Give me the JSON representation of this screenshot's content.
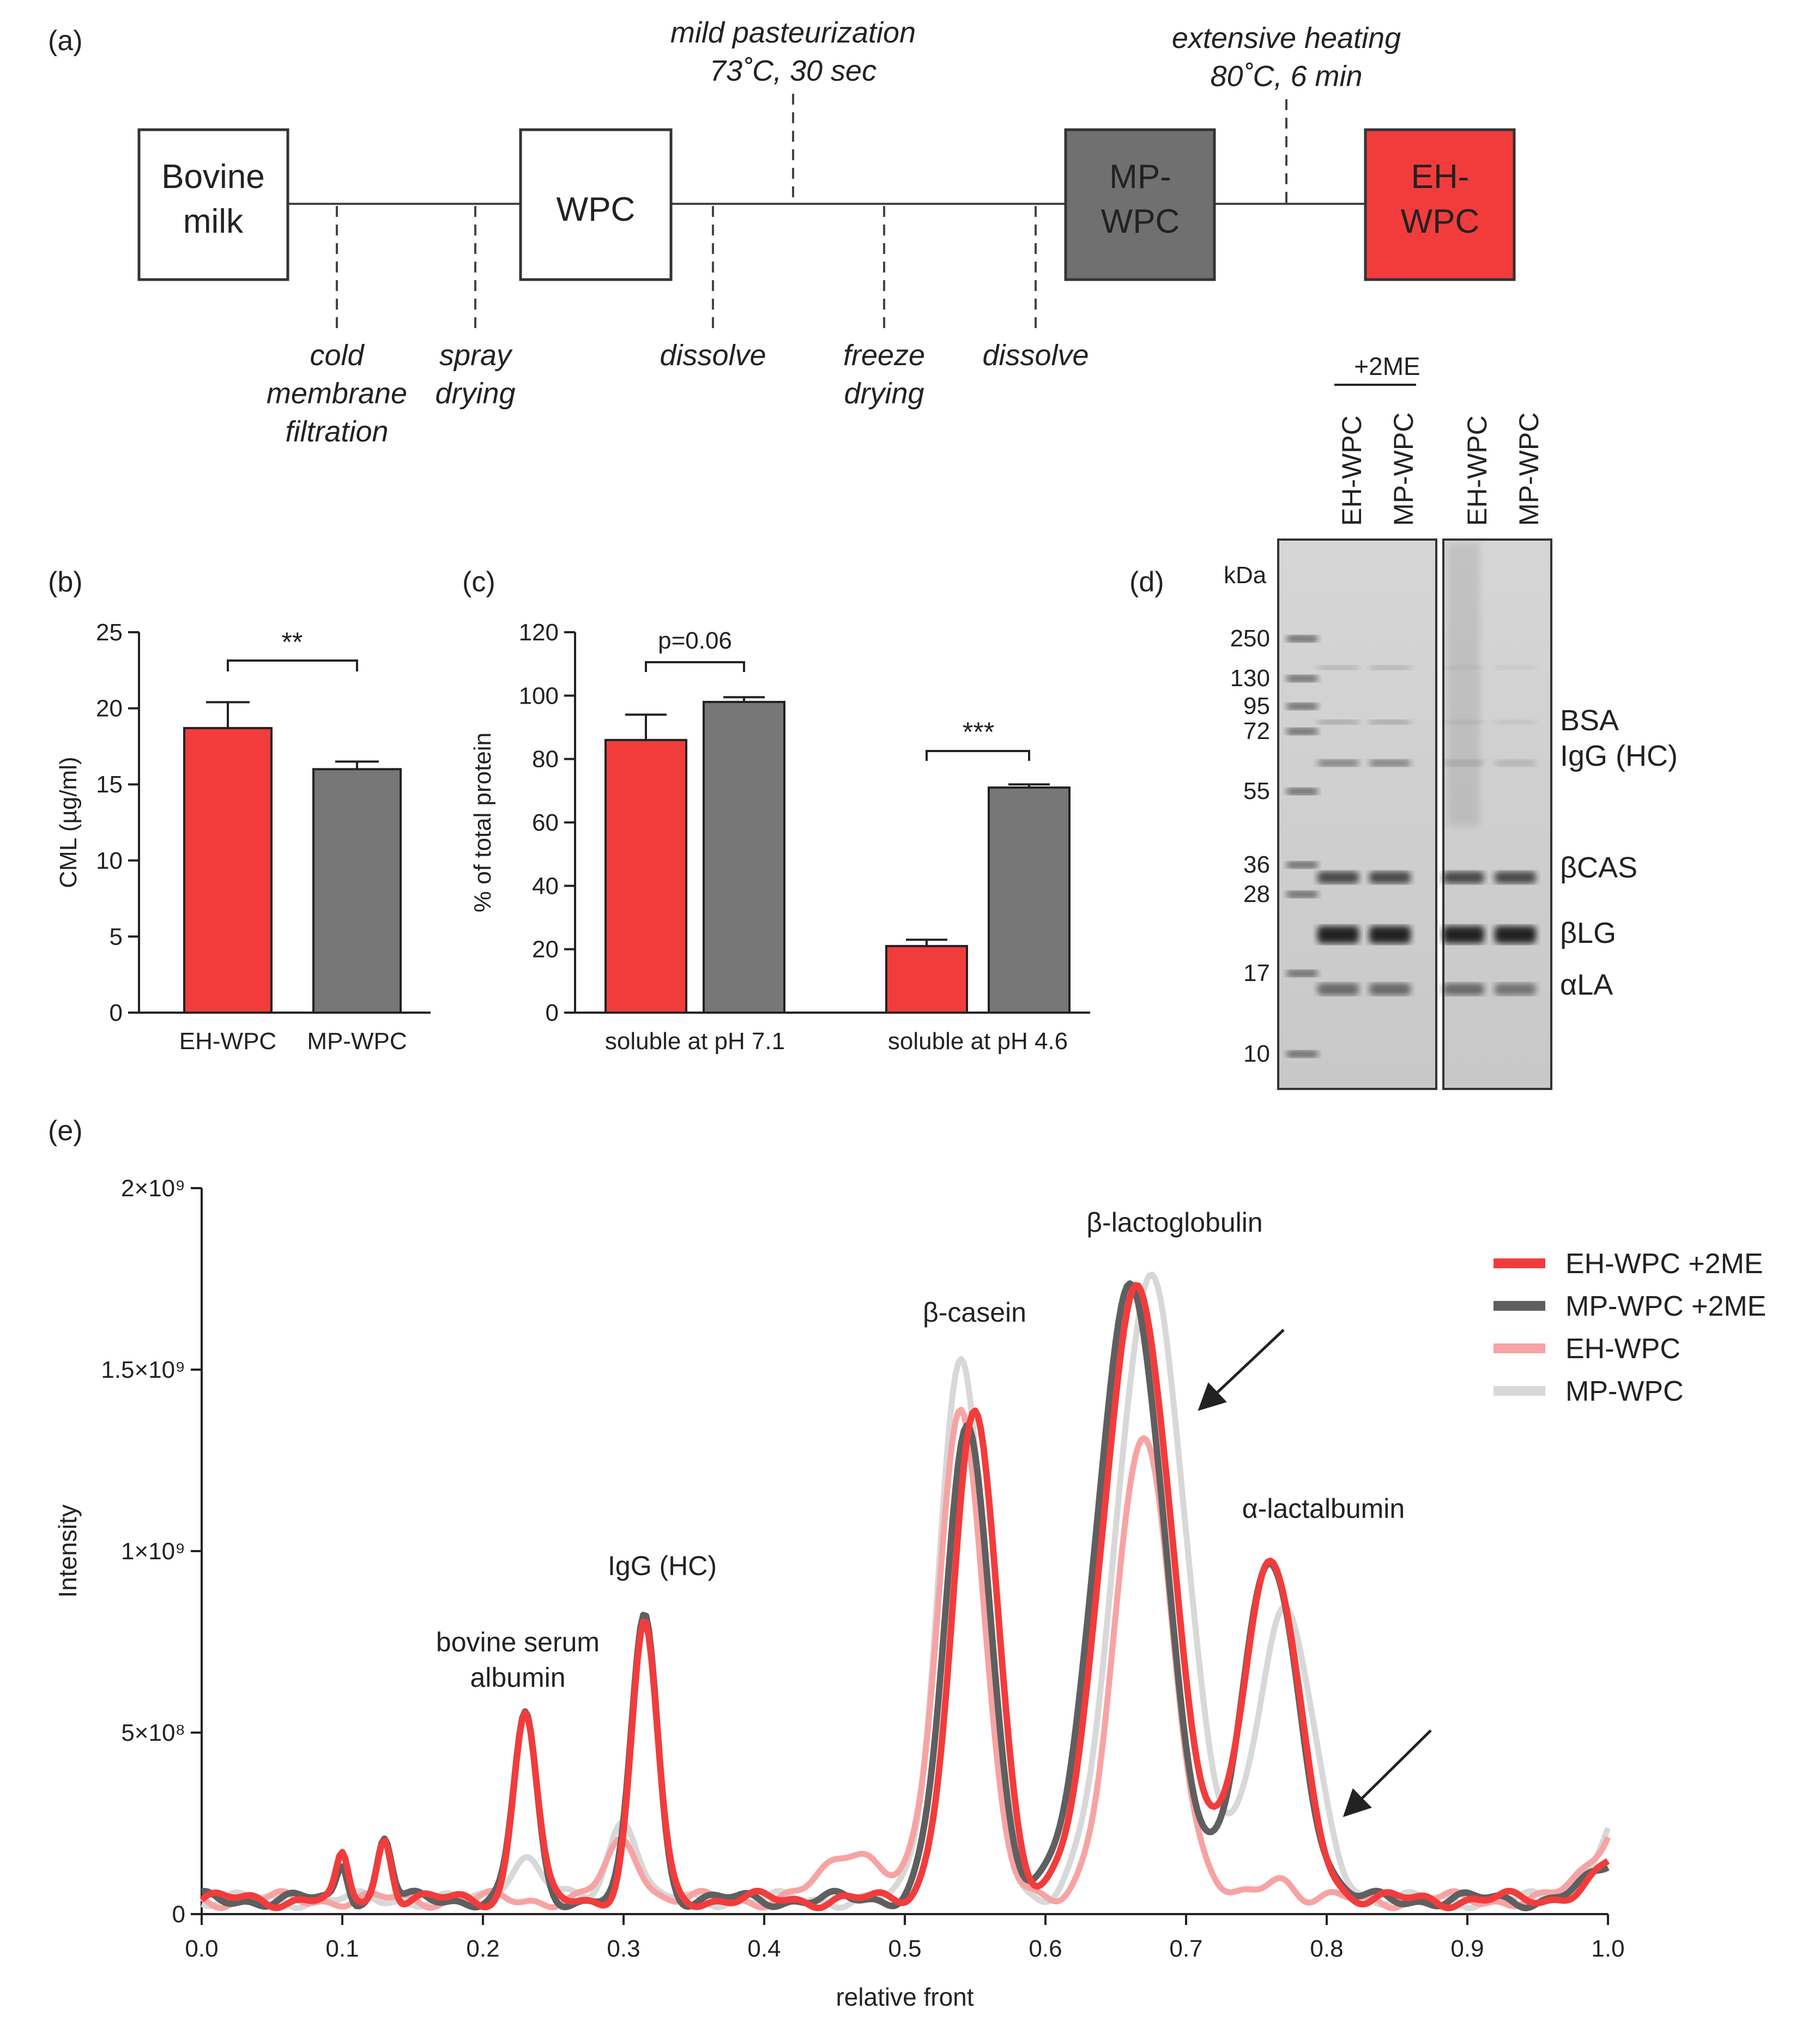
{
  "panel_labels": {
    "a": "(a)",
    "b": "(b)",
    "c": "(c)",
    "d": "(d)",
    "e": "(e)"
  },
  "colors": {
    "eh": "#f23c3c",
    "mp": "#777777",
    "eh_light": "#f7a3a3",
    "mp_light": "#d8d8d8",
    "mp_dark": "#5f5f5f",
    "box_dark": "#707070",
    "box_red": "#f23c3c"
  },
  "flow": {
    "boxes": [
      {
        "line1": "Bovine",
        "line2": "milk"
      },
      {
        "line1": "WPC",
        "line2": ""
      },
      {
        "line1": "MP-",
        "line2": "WPC"
      },
      {
        "line1": "EH-",
        "line2": "WPC"
      }
    ],
    "steps_below": [
      {
        "lines": [
          "cold",
          "membrane",
          "filtration"
        ]
      },
      {
        "lines": [
          "spray",
          "drying"
        ]
      },
      {
        "lines": [
          "dissolve"
        ]
      },
      {
        "lines": [
          "freeze",
          "drying"
        ]
      },
      {
        "lines": [
          "dissolve"
        ]
      }
    ],
    "steps_above": [
      {
        "lines": [
          "mild pasteurization",
          "73˚C, 30 sec"
        ]
      },
      {
        "lines": [
          "extensive heating",
          "80˚C, 6 min"
        ]
      }
    ]
  },
  "gel": {
    "header_2me": "+2ME",
    "lanes": [
      "EH-WPC",
      "MP-WPC",
      "EH-WPC",
      "MP-WPC"
    ],
    "unit": "kDa",
    "markers": [
      "250",
      "130",
      "95",
      "72",
      "55",
      "36",
      "28",
      "17",
      "10"
    ],
    "bands": [
      "BSA",
      "IgG (HC)",
      "βCAS",
      "βLG",
      "αLA"
    ]
  },
  "chart_data": [
    {
      "type": "bar",
      "panel": "b",
      "categories": [
        "EH-WPC",
        "MP-WPC"
      ],
      "values": [
        18.7,
        16.0
      ],
      "errors": [
        1.7,
        0.5
      ],
      "ylabel": "CML (µg/ml)",
      "ylim": [
        0,
        25
      ],
      "yticks": [
        "0",
        "5",
        "10",
        "15",
        "20",
        "25"
      ],
      "significance": "**"
    },
    {
      "type": "bar",
      "panel": "c",
      "categories": [
        "soluble at pH 7.1",
        "soluble at pH 4.6"
      ],
      "series": [
        {
          "name": "EH-WPC",
          "values": [
            86,
            21
          ],
          "errors": [
            8,
            2
          ]
        },
        {
          "name": "MP-WPC",
          "values": [
            98,
            71
          ],
          "errors": [
            1.5,
            1
          ]
        }
      ],
      "ylabel": "% of total protein",
      "ylim": [
        0,
        120
      ],
      "yticks": [
        "0",
        "20",
        "40",
        "60",
        "80",
        "100",
        "120"
      ],
      "significance": [
        "p=0.06",
        "***"
      ]
    },
    {
      "type": "line",
      "panel": "e",
      "xlabel": "relative front",
      "ylabel": "Intensity",
      "xlim": [
        0,
        1
      ],
      "ylim": [
        0,
        2000000000
      ],
      "xticks": [
        "0.0",
        "0.1",
        "0.2",
        "0.3",
        "0.4",
        "0.5",
        "0.6",
        "0.7",
        "0.8",
        "0.9",
        "1.0"
      ],
      "yticks": [
        "0",
        "5×10⁸",
        "1×10⁹",
        "1.5×10⁹",
        "2×10⁹"
      ],
      "annotations": [
        "bovine serum",
        "albumin",
        "IgG (HC)",
        "β-casein",
        "β-lactoglobulin",
        "α-lactalbumin"
      ],
      "baseline": 40000000,
      "series": [
        {
          "name": "EH-WPC +2ME",
          "peaks": [
            [
              0.1,
              110000000,
              0.004
            ],
            [
              0.13,
              170000000,
              0.005
            ],
            [
              0.23,
              520000000,
              0.008
            ],
            [
              0.315,
              760000000,
              0.009
            ],
            [
              0.55,
              1330000000,
              0.016
            ],
            [
              0.665,
              1700000000,
              0.024
            ],
            [
              0.76,
              930000000,
              0.02
            ]
          ]
        },
        {
          "name": "MP-WPC +2ME",
          "peaks": [
            [
              0.1,
              100000000,
              0.004
            ],
            [
              0.13,
              170000000,
              0.005
            ],
            [
              0.23,
              510000000,
              0.008
            ],
            [
              0.315,
              790000000,
              0.009
            ],
            [
              0.545,
              1300000000,
              0.016
            ],
            [
              0.66,
              1690000000,
              0.024
            ],
            [
              0.76,
              920000000,
              0.02
            ]
          ]
        },
        {
          "name": "EH-WPC",
          "peaks": [
            [
              0.3,
              160000000,
              0.012
            ],
            [
              0.54,
              1360000000,
              0.016
            ],
            [
              0.67,
              1270000000,
              0.02
            ],
            [
              0.765,
              70000000,
              0.01
            ],
            [
              0.465,
              140000000,
              0.02
            ]
          ]
        },
        {
          "name": "MP-WPC",
          "peaks": [
            [
              0.23,
              120000000,
              0.012
            ],
            [
              0.3,
              230000000,
              0.01
            ],
            [
              0.54,
              1500000000,
              0.016
            ],
            [
              0.675,
              1730000000,
              0.024
            ],
            [
              0.77,
              800000000,
              0.02
            ]
          ]
        }
      ]
    }
  ]
}
